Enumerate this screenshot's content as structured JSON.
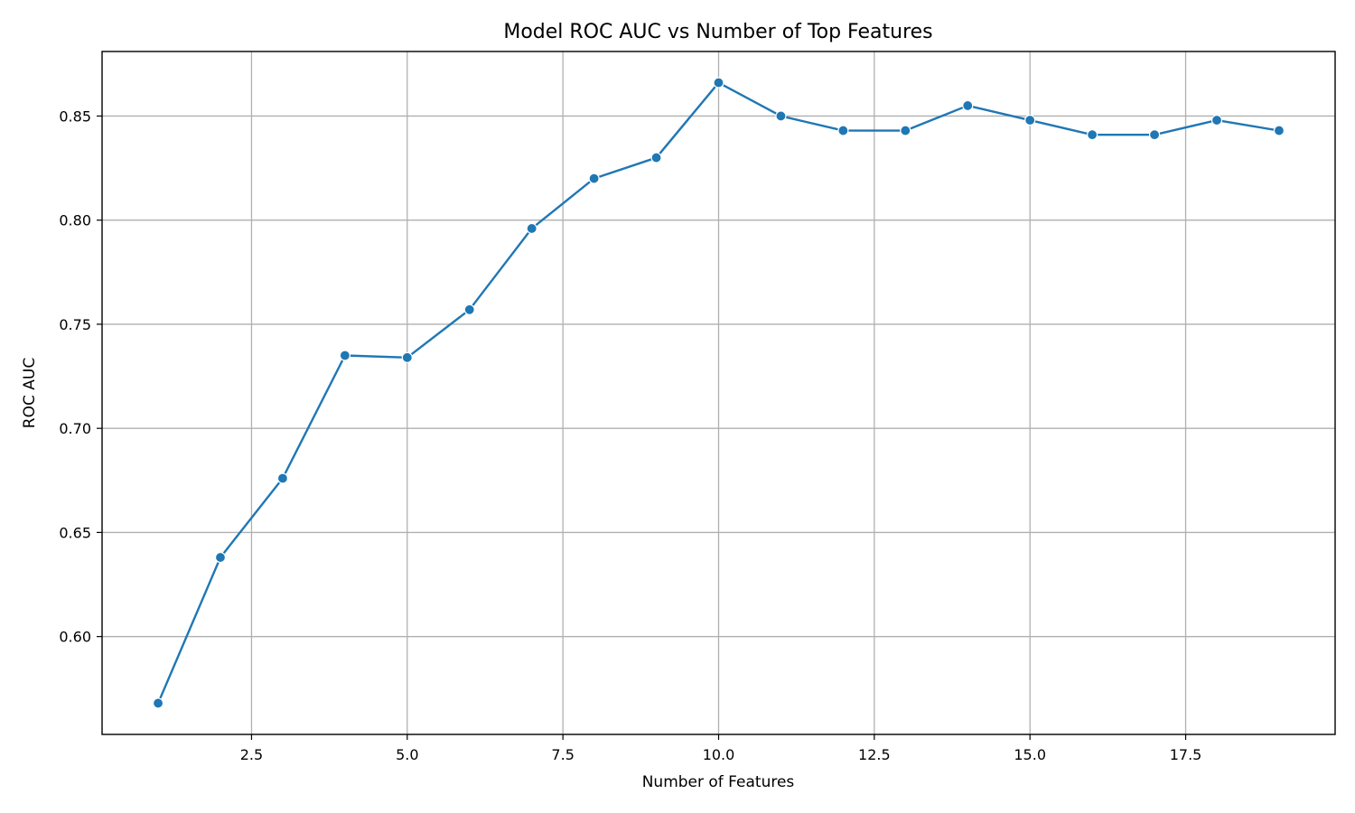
{
  "chart_data": {
    "type": "line",
    "title": "Model ROC AUC vs Number of Top Features",
    "xlabel": "Number of Features",
    "ylabel": "ROC AUC",
    "xlim": [
      0.1,
      19.9
    ],
    "ylim": [
      0.553,
      0.881
    ],
    "xticks": [
      2.5,
      5.0,
      7.5,
      10.0,
      12.5,
      15.0,
      17.5
    ],
    "xtick_labels": [
      "2.5",
      "5.0",
      "7.5",
      "10.0",
      "12.5",
      "15.0",
      "17.5"
    ],
    "yticks": [
      0.6,
      0.65,
      0.7,
      0.75,
      0.8,
      0.85
    ],
    "ytick_labels": [
      "0.60",
      "0.65",
      "0.70",
      "0.75",
      "0.80",
      "0.85"
    ],
    "grid": true,
    "series": [
      {
        "name": "ROC AUC",
        "color": "#1f77b4",
        "marker": "circle",
        "x": [
          1,
          2,
          3,
          4,
          5,
          6,
          7,
          8,
          9,
          10,
          11,
          12,
          13,
          14,
          15,
          16,
          17,
          18,
          19
        ],
        "values": [
          0.568,
          0.638,
          0.676,
          0.735,
          0.734,
          0.757,
          0.796,
          0.82,
          0.83,
          0.866,
          0.85,
          0.843,
          0.843,
          0.855,
          0.848,
          0.841,
          0.841,
          0.848,
          0.843
        ]
      }
    ]
  }
}
